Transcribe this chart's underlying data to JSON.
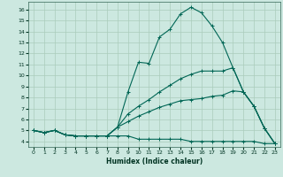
{
  "xlabel": "Humidex (Indice chaleur)",
  "bg_color": "#cce8e0",
  "grid_color": "#aaccbb",
  "line_color": "#006655",
  "xlim": [
    -0.5,
    23.5
  ],
  "ylim": [
    3.5,
    16.7
  ],
  "xticks": [
    0,
    1,
    2,
    3,
    4,
    5,
    6,
    7,
    8,
    9,
    10,
    11,
    12,
    13,
    14,
    15,
    16,
    17,
    18,
    19,
    20,
    21,
    22,
    23
  ],
  "yticks": [
    4,
    5,
    6,
    7,
    8,
    9,
    10,
    11,
    12,
    13,
    14,
    15,
    16
  ],
  "line1_x": [
    0,
    1,
    2,
    3,
    4,
    5,
    6,
    7,
    8,
    9,
    10,
    11,
    12,
    13,
    14,
    15,
    16,
    17,
    18,
    19,
    20,
    21,
    22,
    23
  ],
  "line1_y": [
    5.0,
    4.8,
    5.0,
    4.6,
    4.5,
    4.5,
    4.5,
    4.5,
    5.3,
    8.5,
    11.2,
    11.1,
    13.5,
    14.2,
    15.6,
    16.2,
    15.7,
    14.5,
    13.0,
    10.7,
    8.5,
    7.2,
    5.2,
    3.8
  ],
  "line2_x": [
    0,
    1,
    2,
    3,
    4,
    5,
    6,
    7,
    8,
    9,
    10,
    11,
    12,
    13,
    14,
    15,
    16,
    17,
    18,
    19,
    20,
    21,
    22,
    23
  ],
  "line2_y": [
    5.0,
    4.8,
    5.0,
    4.6,
    4.5,
    4.5,
    4.5,
    4.5,
    5.3,
    6.5,
    7.2,
    7.8,
    8.5,
    9.1,
    9.7,
    10.1,
    10.4,
    10.4,
    10.4,
    10.7,
    8.5,
    7.2,
    5.2,
    3.8
  ],
  "line3_x": [
    0,
    1,
    2,
    3,
    4,
    5,
    6,
    7,
    8,
    9,
    10,
    11,
    12,
    13,
    14,
    15,
    16,
    17,
    18,
    19,
    20,
    21,
    22,
    23
  ],
  "line3_y": [
    5.0,
    4.8,
    5.0,
    4.6,
    4.5,
    4.5,
    4.5,
    4.5,
    5.3,
    5.8,
    6.3,
    6.7,
    7.1,
    7.4,
    7.7,
    7.8,
    7.9,
    8.1,
    8.2,
    8.6,
    8.5,
    7.2,
    5.2,
    3.8
  ],
  "line4_x": [
    0,
    1,
    2,
    3,
    4,
    5,
    6,
    7,
    8,
    9,
    10,
    11,
    12,
    13,
    14,
    15,
    16,
    17,
    18,
    19,
    20,
    21,
    22,
    23
  ],
  "line4_y": [
    5.0,
    4.8,
    5.0,
    4.6,
    4.5,
    4.5,
    4.5,
    4.5,
    4.5,
    4.5,
    4.2,
    4.2,
    4.2,
    4.2,
    4.2,
    4.0,
    4.0,
    4.0,
    4.0,
    4.0,
    4.0,
    4.0,
    3.8,
    3.8
  ]
}
